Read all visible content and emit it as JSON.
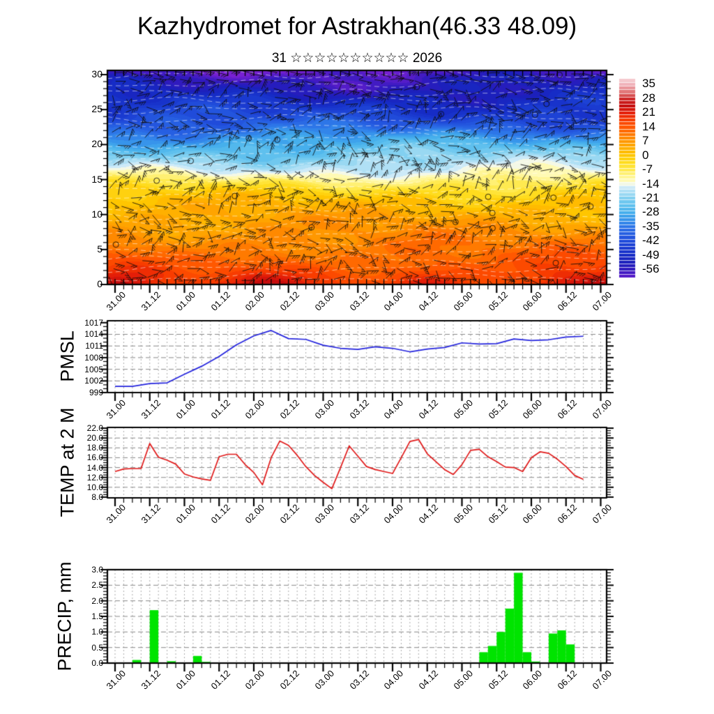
{
  "title": "Kazhydromet for Astrakhan(46.33 48.09)",
  "subtitle": "31 ☆☆☆☆☆☆☆☆☆☆ 2026",
  "x_axis": {
    "labels": [
      "31.00",
      "31.12",
      "01.00",
      "01.12",
      "02.00",
      "02.12",
      "03.00",
      "03.12",
      "04.00",
      "04.12",
      "05.00",
      "05.12",
      "06.00",
      "06.12",
      "07.00"
    ],
    "major_step_hours": 12,
    "minor_step_hours": 3,
    "total_hours": 168
  },
  "chart_data": [
    {
      "type": "heatmap",
      "description": "vertical temperature cross-section (model levels 0-30) with wind barbs",
      "y_ticks": [
        0,
        5,
        10,
        15,
        20,
        25,
        30
      ],
      "y_minor_step": 1,
      "ylim": [
        0,
        30.6
      ],
      "grid": false,
      "colorbar": {
        "position": "right",
        "tick_labels": [
          "35",
          "28",
          "21",
          "14",
          "7",
          "0",
          "-7",
          "-14",
          "-21",
          "-28",
          "-35",
          "-42",
          "-49",
          "-56"
        ],
        "tick_values": [
          35,
          28,
          21,
          14,
          7,
          0,
          -7,
          -14,
          -21,
          -28,
          -35,
          -42,
          -49,
          -56
        ],
        "value_top": 37.5,
        "value_bottom": -60,
        "band_step": 1.75
      },
      "cmap_stops": [
        [
          38,
          [
            247,
            216,
            220
          ]
        ],
        [
          35,
          [
            240,
            178,
            186
          ]
        ],
        [
          31.5,
          [
            226,
            120,
            122
          ]
        ],
        [
          28,
          [
            205,
            38,
            38
          ]
        ],
        [
          24.5,
          [
            198,
            12,
            12
          ]
        ],
        [
          21,
          [
            228,
            30,
            8
          ]
        ],
        [
          17.5,
          [
            248,
            60,
            0
          ]
        ],
        [
          14,
          [
            255,
            88,
            0
          ]
        ],
        [
          10.5,
          [
            255,
            122,
            0
          ]
        ],
        [
          7,
          [
            255,
            152,
            0
          ]
        ],
        [
          3.5,
          [
            255,
            176,
            0
          ]
        ],
        [
          0,
          [
            255,
            198,
            0
          ]
        ],
        [
          -3.5,
          [
            255,
            220,
            30
          ]
        ],
        [
          -7,
          [
            255,
            234,
            80
          ]
        ],
        [
          -10.5,
          [
            255,
            246,
            150
          ]
        ],
        [
          -13.9,
          [
            255,
            253,
            210
          ]
        ],
        [
          -14.1,
          [
            232,
            243,
            250
          ]
        ],
        [
          -17.5,
          [
            176,
            224,
            245
          ]
        ],
        [
          -21,
          [
            130,
            208,
            240
          ]
        ],
        [
          -24.5,
          [
            95,
            192,
            238
          ]
        ],
        [
          -28,
          [
            70,
            175,
            236
          ]
        ],
        [
          -31.5,
          [
            55,
            148,
            235
          ]
        ],
        [
          -35,
          [
            45,
            118,
            232
          ]
        ],
        [
          -38.5,
          [
            38,
            95,
            226
          ]
        ],
        [
          -42,
          [
            32,
            75,
            218
          ]
        ],
        [
          -45.5,
          [
            26,
            58,
            208
          ]
        ],
        [
          -49,
          [
            22,
            44,
            198
          ]
        ],
        [
          -52.5,
          [
            28,
            32,
            188
          ]
        ],
        [
          -56,
          [
            48,
            26,
            190
          ]
        ],
        [
          -59.5,
          [
            84,
            28,
            200
          ]
        ],
        [
          -63,
          [
            120,
            32,
            210
          ]
        ]
      ],
      "vertical_profile": [
        [
          0,
          19
        ],
        [
          3,
          13.5
        ],
        [
          6,
          9.5
        ],
        [
          9,
          5.5
        ],
        [
          12,
          1
        ],
        [
          13.5,
          -3
        ],
        [
          14.8,
          -8
        ],
        [
          15.6,
          -12
        ],
        [
          16.5,
          -15.5
        ],
        [
          18,
          -20
        ],
        [
          19.5,
          -25
        ],
        [
          21,
          -31
        ],
        [
          22.5,
          -38
        ],
        [
          24,
          -43
        ],
        [
          26,
          -48
        ],
        [
          28,
          -53
        ],
        [
          29.5,
          -56
        ],
        [
          30.7,
          -61
        ]
      ],
      "waves": [
        {
          "amp": 2.0,
          "kx": 0.009,
          "kh": 0.5,
          "phase": 0.0
        },
        {
          "amp": 1.4,
          "kx": 0.025,
          "kh": -0.9,
          "phase": 2.2
        },
        {
          "amp": 0.9,
          "kx": 0.055,
          "kh": 1.7,
          "phase": 0.7
        }
      ],
      "hot_spots": [
        {
          "hour": 3,
          "amp": 4.5,
          "sigma": 45
        },
        {
          "hour": 54,
          "amp": 4.5,
          "sigma": 50
        },
        {
          "hour": 108,
          "amp": 4.0,
          "sigma": 45
        },
        {
          "hour": 156,
          "amp": 4.5,
          "sigma": 45
        },
        {
          "hour": 169,
          "amp": 3.5,
          "sigma": 30
        }
      ],
      "cold_spots": [
        {
          "hour": 26,
          "amp": -2.5,
          "sigma": 50
        },
        {
          "hour": 82,
          "amp": -2.0,
          "sigma": 55
        },
        {
          "hour": 130,
          "amp": -2.0,
          "sigma": 50
        }
      ],
      "overlays": [
        "wind-barbs",
        "white-dashed-contours",
        "calm-circles"
      ]
    },
    {
      "type": "line",
      "name": "PMSL",
      "color": "#2222dd",
      "y_tick_labels": [
        "999",
        "1002",
        "1005",
        "1008",
        "1011",
        "1014",
        "1017"
      ],
      "y_tick_values": [
        999,
        1002,
        1005,
        1008,
        1011,
        1014,
        1017
      ],
      "y_minor_step": 1,
      "ylim": [
        999,
        1017.5
      ],
      "grid": true,
      "start_hour": 0,
      "step_hours": 6,
      "values": [
        1000.6,
        1000.6,
        1001.3,
        1001.5,
        1003.7,
        1005.8,
        1008.3,
        1011.3,
        1013.6,
        1015.0,
        1012.9,
        1012.7,
        1011.2,
        1010.4,
        1010.1,
        1010.8,
        1010.4,
        1009.5,
        1010.2,
        1010.6,
        1011.8,
        1011.5,
        1011.6,
        1012.8,
        1012.4,
        1012.6,
        1013.3,
        1013.5
      ]
    },
    {
      "type": "line",
      "name": "TEMP at 2 M",
      "color": "#e01818",
      "y_tick_labels": [
        "8.0",
        "10.0",
        "12.0",
        "14.0",
        "16.0",
        "18.0",
        "20.0",
        "22.0"
      ],
      "y_tick_values": [
        8,
        10,
        12,
        14,
        16,
        18,
        20,
        22
      ],
      "y_minor_step": 0.5,
      "ylim": [
        7.85,
        22.15
      ],
      "grid": true,
      "start_hour": 0,
      "step_hours": 3,
      "values": [
        13.2,
        13.7,
        13.8,
        13.8,
        18.9,
        16.1,
        15.5,
        14.7,
        12.7,
        12.1,
        11.7,
        11.4,
        16.2,
        16.7,
        16.7,
        14.6,
        13.0,
        10.5,
        16.0,
        19.4,
        18.5,
        16.5,
        14.2,
        12.4,
        11.0,
        9.7,
        14.0,
        18.4,
        16.3,
        14.2,
        13.6,
        13.2,
        12.8,
        16.0,
        19.3,
        19.7,
        16.8,
        15.2,
        13.6,
        12.6,
        14.6,
        17.5,
        17.7,
        16.2,
        15.2,
        14.1,
        14.0,
        13.2,
        16.0,
        17.2,
        16.9,
        15.7,
        14.2,
        12.4,
        11.6
      ]
    },
    {
      "type": "bar",
      "name": "PRECIP, mm",
      "color": "#00e400",
      "y_tick_labels": [
        "0.0",
        "0.5",
        "1.0",
        "1.5",
        "2.0",
        "2.5",
        "3.0"
      ],
      "y_tick_values": [
        0,
        0.5,
        1,
        1.5,
        2,
        2.5,
        3
      ],
      "y_minor_step": 0.1,
      "ylim": [
        0,
        3.0
      ],
      "grid": true,
      "bin_hours": 3,
      "values": [
        0,
        0,
        0.1,
        0,
        1.7,
        0,
        0.06,
        0.02,
        0.02,
        0.23,
        0.04,
        0,
        0,
        0,
        0,
        0,
        0,
        0,
        0,
        0,
        0,
        0,
        0,
        0,
        0,
        0,
        0,
        0,
        0,
        0,
        0,
        0,
        0,
        0,
        0,
        0,
        0,
        0.02,
        0,
        0.02,
        0.02,
        0,
        0.35,
        0.55,
        1.0,
        1.75,
        2.9,
        0.35,
        0.05,
        0,
        0.95,
        1.05,
        0.6,
        0,
        0,
        0.02
      ]
    }
  ]
}
